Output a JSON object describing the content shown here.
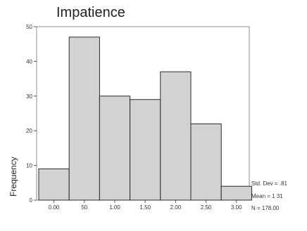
{
  "chart_data": {
    "type": "bar",
    "title": "Impatience",
    "xlabel": "",
    "ylabel": "Frequency",
    "categories": [
      "0.00",
      "50",
      "1.00",
      "1.50",
      "2.00",
      "2.50",
      "3.00"
    ],
    "values": [
      9,
      47,
      30,
      29,
      37,
      22,
      4
    ],
    "ylim": [
      0,
      50
    ],
    "yticks": [
      "0",
      "10",
      "20",
      "30",
      "40",
      "50"
    ],
    "ytick_values": [
      0,
      10,
      20,
      30,
      40,
      50
    ],
    "grid": false,
    "stats": [
      "Std. Dev = .81",
      "Mean = 1 31",
      "N = 178.00"
    ],
    "bar_color": "#d2d2d2"
  }
}
